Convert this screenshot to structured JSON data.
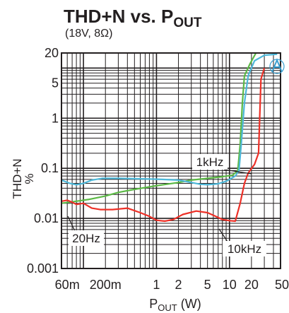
{
  "chart_data": {
    "type": "line",
    "title_main": "THD+N vs. P",
    "title_sub": "OUT",
    "subtitle": "(18V, 8Ω)",
    "ylabel_main": "THD+N",
    "ylabel_unit": "%",
    "xlabel_main": "P",
    "xlabel_sub": "OUT",
    "xlabel_unit": " (W)",
    "x_scale": "log",
    "y_scale": "log",
    "xlim": [
      0.05,
      50
    ],
    "ylim": [
      0.001,
      20
    ],
    "grid": true,
    "x_ticks": [
      {
        "value": 0.06,
        "label": "60m"
      },
      {
        "value": 0.2,
        "label": "200m"
      },
      {
        "value": 1,
        "label": "1"
      },
      {
        "value": 2,
        "label": "2"
      },
      {
        "value": 5,
        "label": "5"
      },
      {
        "value": 10,
        "label": "10"
      },
      {
        "value": 20,
        "label": "20"
      },
      {
        "value": 50,
        "label": "50"
      }
    ],
    "y_ticks": [
      {
        "value": 20,
        "label": "20"
      },
      {
        "value": 5,
        "label": "5"
      },
      {
        "value": 1,
        "label": "1"
      },
      {
        "value": 0.1,
        "label": "0.1"
      },
      {
        "value": 0.01,
        "label": "0.01"
      },
      {
        "value": 0.001,
        "label": "0.001"
      }
    ],
    "series": [
      {
        "name": "20Hz",
        "color": "#5cb946",
        "points": [
          [
            0.05,
            0.02
          ],
          [
            0.08,
            0.022
          ],
          [
            0.12,
            0.024
          ],
          [
            0.2,
            0.028
          ],
          [
            0.3,
            0.033
          ],
          [
            0.5,
            0.038
          ],
          [
            1,
            0.045
          ],
          [
            2,
            0.052
          ],
          [
            3,
            0.058
          ],
          [
            5,
            0.063
          ],
          [
            8,
            0.068
          ],
          [
            11,
            0.073
          ],
          [
            13,
            0.09
          ],
          [
            14,
            0.3
          ],
          [
            15,
            2
          ],
          [
            16,
            7
          ],
          [
            19,
            12
          ],
          [
            23,
            20
          ]
        ]
      },
      {
        "name": "1kHz",
        "color": "#4db8d9",
        "points": [
          [
            0.05,
            0.058
          ],
          [
            0.065,
            0.05
          ],
          [
            0.08,
            0.047
          ],
          [
            0.1,
            0.05
          ],
          [
            0.13,
            0.058
          ],
          [
            0.18,
            0.063
          ],
          [
            0.3,
            0.063
          ],
          [
            0.5,
            0.062
          ],
          [
            0.8,
            0.061
          ],
          [
            1.2,
            0.06
          ],
          [
            2,
            0.058
          ],
          [
            3,
            0.052
          ],
          [
            4,
            0.048
          ],
          [
            5,
            0.047
          ],
          [
            7,
            0.049
          ],
          [
            9,
            0.055
          ],
          [
            12,
            0.07
          ],
          [
            13.5,
            0.09
          ],
          [
            14.5,
            0.3
          ],
          [
            16,
            2
          ],
          [
            18,
            7
          ],
          [
            22,
            14
          ],
          [
            30,
            18
          ],
          [
            45,
            19
          ]
        ]
      },
      {
        "name": "10kHz",
        "color": "#ed3027",
        "points": [
          [
            0.05,
            0.022
          ],
          [
            0.06,
            0.023
          ],
          [
            0.07,
            0.021
          ],
          [
            0.08,
            0.019
          ],
          [
            0.1,
            0.02
          ],
          [
            0.13,
            0.016
          ],
          [
            0.17,
            0.015
          ],
          [
            0.25,
            0.015
          ],
          [
            0.4,
            0.016
          ],
          [
            0.6,
            0.013
          ],
          [
            0.8,
            0.011
          ],
          [
            1,
            0.0092
          ],
          [
            1.3,
            0.0088
          ],
          [
            1.7,
            0.0095
          ],
          [
            2.3,
            0.012
          ],
          [
            3.5,
            0.014
          ],
          [
            5,
            0.013
          ],
          [
            6.5,
            0.011
          ],
          [
            8,
            0.0095
          ],
          [
            10,
            0.009
          ],
          [
            12,
            0.0088
          ],
          [
            14,
            0.02
          ],
          [
            16,
            0.05
          ],
          [
            18,
            0.08
          ],
          [
            22,
            0.12
          ],
          [
            25,
            0.2
          ],
          [
            27,
            6
          ],
          [
            30,
            10
          ]
        ]
      }
    ],
    "annotations": [
      {
        "label": "1kHz",
        "series": "1kHz"
      },
      {
        "label": "20Hz",
        "series": "20Hz"
      },
      {
        "label": "10kHz",
        "series": "10kHz"
      }
    ]
  }
}
